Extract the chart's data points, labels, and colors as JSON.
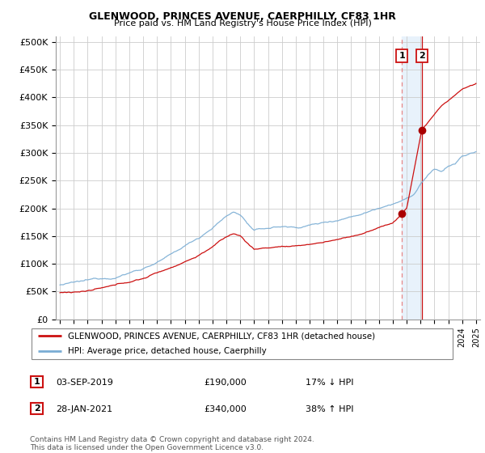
{
  "title": "GLENWOOD, PRINCES AVENUE, CAERPHILLY, CF83 1HR",
  "subtitle": "Price paid vs. HM Land Registry's House Price Index (HPI)",
  "legend_line1": "GLENWOOD, PRINCES AVENUE, CAERPHILLY, CF83 1HR (detached house)",
  "legend_line2": "HPI: Average price, detached house, Caerphilly",
  "annotation1_date": "03-SEP-2019",
  "annotation1_price": "£190,000",
  "annotation1_hpi": "17% ↓ HPI",
  "annotation2_date": "28-JAN-2021",
  "annotation2_price": "£340,000",
  "annotation2_hpi": "38% ↑ HPI",
  "footnote": "Contains HM Land Registry data © Crown copyright and database right 2024.\nThis data is licensed under the Open Government Licence v3.0.",
  "hpi_color": "#7aadd4",
  "price_color": "#cc1111",
  "marker_color": "#aa0000",
  "highlight_color": "#e8f2fb",
  "annotation_box_color": "#cc1111",
  "vline1_color": "#e88888",
  "vline2_color": "#cc1111",
  "ylim": [
    0,
    510000
  ],
  "yticks": [
    0,
    50000,
    100000,
    150000,
    200000,
    250000,
    300000,
    350000,
    400000,
    450000,
    500000
  ],
  "sale1_year": 2019.67,
  "sale1_price": 190000,
  "sale2_year": 2021.08,
  "sale2_price": 340000
}
